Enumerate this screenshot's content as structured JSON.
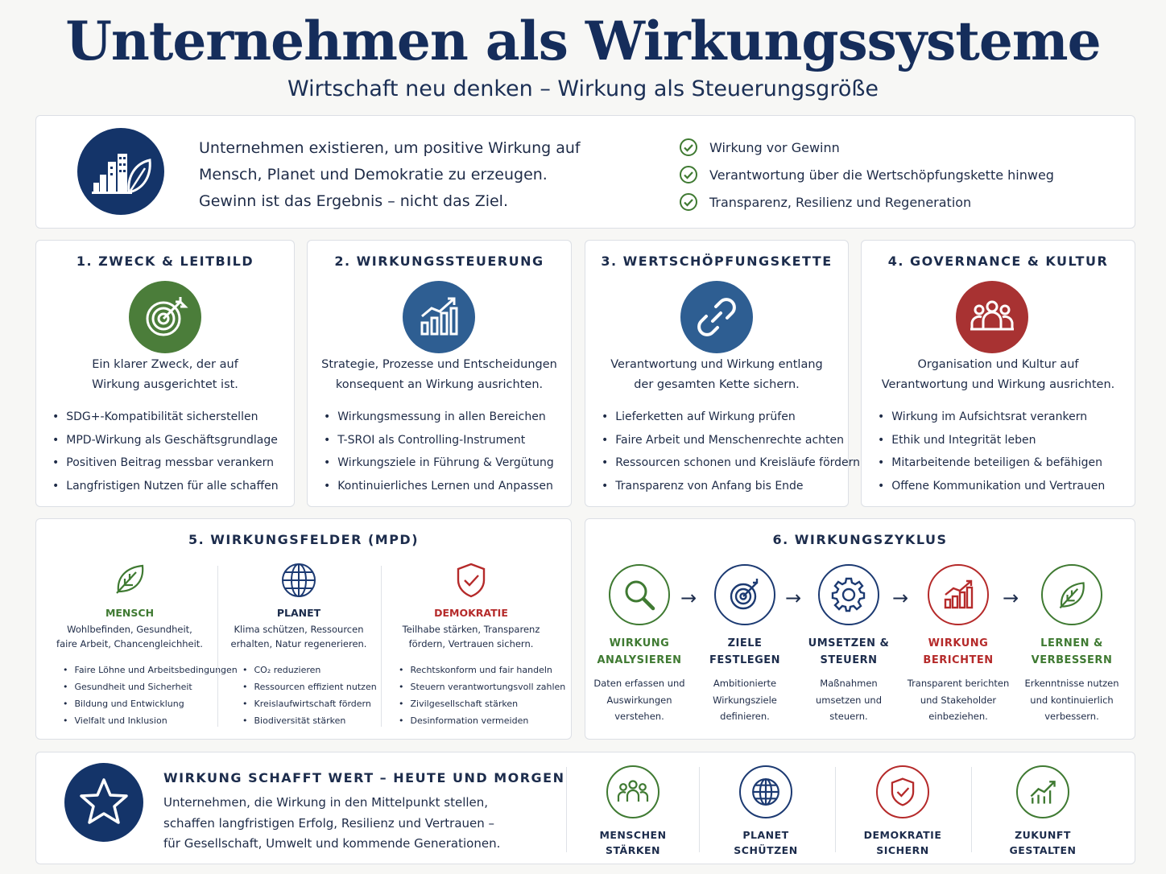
{
  "header": {
    "title": "Unternehmen als Wirkungssysteme",
    "subtitle": "Wirtschaft neu denken – Wirkung als Steuerungsgröße"
  },
  "intro": {
    "icon": "buildings-leaf-icon",
    "lines": [
      "Unternehmen existieren, um positive Wirkung auf",
      "Mensch, Planet und Demokratie zu erzeugen.",
      "Gewinn ist das Ergebnis – nicht das Ziel."
    ],
    "checks": [
      "Wirkung vor Gewinn",
      "Verantwortung über die Wertschöpfungskette hinweg",
      "Transparenz, Resilienz und Regeneration"
    ]
  },
  "pillars": [
    {
      "title": "1. ZWECK & LEITBILD",
      "icon": "target-icon",
      "color": "#4b7d3a",
      "desc": [
        "Ein klarer Zweck, der auf",
        "Wirkung ausgerichtet ist."
      ],
      "items": [
        "SDG+-Kompatibilität sicherstellen",
        "MPD-Wirkung als Geschäftsgrundlage",
        "Positiven Beitrag messbar verankern",
        "Langfristigen Nutzen für alle schaffen"
      ]
    },
    {
      "title": "2. WIRKUNGSSTEUERUNG",
      "icon": "bar-chart-growth-icon",
      "color": "#2e5e92",
      "desc": [
        "Strategie, Prozesse und Entscheidungen",
        "konsequent an Wirkung ausrichten."
      ],
      "items": [
        "Wirkungsmessung in allen Bereichen",
        "T-SROI als Controlling-Instrument",
        "Wirkungsziele in Führung & Vergütung",
        "Kontinuierliches Lernen und Anpassen"
      ]
    },
    {
      "title": "3. WERTSCHÖPFUNGSKETTE",
      "icon": "chain-link-icon",
      "color": "#2e5e92",
      "desc": [
        "Verantwortung und Wirkung entlang",
        "der gesamten Kette sichern."
      ],
      "items": [
        "Lieferketten auf Wirkung prüfen",
        "Faire Arbeit und Menschenrechte achten",
        "Ressourcen schonen und Kreisläufe fördern",
        "Transparenz von Anfang bis Ende"
      ]
    },
    {
      "title": "4. GOVERNANCE & KULTUR",
      "icon": "people-group-icon",
      "color": "#a83232",
      "desc": [
        "Organisation und Kultur auf",
        "Verantwortung und Wirkung ausrichten."
      ],
      "items": [
        "Wirkung im Aufsichtsrat verankern",
        "Ethik und Integrität leben",
        "Mitarbeitende beteiligen & befähigen",
        "Offene Kommunikation und Vertrauen"
      ]
    }
  ],
  "fields": {
    "title": "5. WIRKUNGSFELDER (MPD)",
    "columns": [
      {
        "label": "MENSCH",
        "icon": "leaf-icon",
        "color": "#3f7a32",
        "desc": [
          "Wohlbefinden, Gesundheit,",
          "faire Arbeit, Chancengleichheit."
        ],
        "items": [
          "Faire Löhne und Arbeitsbedingungen",
          "Gesundheit und Sicherheit",
          "Bildung und Entwicklung",
          "Vielfalt und Inklusion"
        ]
      },
      {
        "label": "PLANET",
        "icon": "globe-icon",
        "color": "#1c2c4c",
        "desc": [
          "Klima schützen, Ressourcen",
          "erhalten, Natur regenerieren."
        ],
        "items": [
          "CO₂ reduzieren",
          "Ressourcen effizient nutzen",
          "Kreislaufwirtschaft fördern",
          "Biodiversität stärken"
        ]
      },
      {
        "label": "DEMOKRATIE",
        "icon": "shield-check-icon",
        "color": "#b52a2a",
        "desc": [
          "Teilhabe stärken, Transparenz",
          "fördern, Vertrauen sichern."
        ],
        "items": [
          "Rechtskonform und fair handeln",
          "Steuern verantwortungsvoll zahlen",
          "Zivilgesellschaft stärken",
          "Desinformation vermeiden"
        ]
      }
    ]
  },
  "cycle": {
    "title": "6. WIRKUNGSZYKLUS",
    "steps": [
      {
        "label": [
          "WIRKUNG",
          "ANALYSIEREN"
        ],
        "icon": "magnifier-icon",
        "color": "#3f7a32",
        "desc": [
          "Daten erfassen und",
          "Auswirkungen",
          "verstehen."
        ]
      },
      {
        "label": [
          "ZIELE",
          "FESTLEGEN"
        ],
        "icon": "target-icon",
        "color": "#1c3a72",
        "desc": [
          "Ambitionierte",
          "Wirkungsziele",
          "definieren."
        ]
      },
      {
        "label": [
          "UMSETZEN &",
          "STEUERN"
        ],
        "icon": "gear-icon",
        "color": "#1c3a72",
        "desc": [
          "Maßnahmen",
          "umsetzen und",
          "steuern."
        ]
      },
      {
        "label": [
          "WIRKUNG",
          "BERICHTEN"
        ],
        "icon": "bar-chart-growth-icon",
        "color": "#b52a2a",
        "desc": [
          "Transparent berichten",
          "und Stakeholder",
          "einbeziehen."
        ]
      },
      {
        "label": [
          "LERNEN &",
          "VERBESSERN"
        ],
        "icon": "leaf-icon",
        "color": "#3f7a32",
        "desc": [
          "Erkenntnisse nutzen",
          "und kontinuierlich",
          "verbessern."
        ]
      }
    ]
  },
  "footer": {
    "icon": "star-icon",
    "heading": "WIRKUNG SCHAFFT WERT – HEUTE UND MORGEN",
    "lines": [
      "Unternehmen, die Wirkung in den Mittelpunkt stellen,",
      "schaffen langfristigen Erfolg, Resilienz und Vertrauen –",
      "für Gesellschaft, Umwelt und kommende Generationen."
    ],
    "items": [
      {
        "label": [
          "MENSCHEN",
          "STÄRKEN"
        ],
        "icon": "people-group-icon",
        "color": "#3f7a32"
      },
      {
        "label": [
          "PLANET",
          "SCHÜTZEN"
        ],
        "icon": "globe-icon",
        "color": "#1c3a72"
      },
      {
        "label": [
          "DEMOKRATIE",
          "SICHERN"
        ],
        "icon": "shield-check-icon",
        "color": "#b52a2a"
      },
      {
        "label": [
          "ZUKUNFT",
          "GESTALTEN"
        ],
        "icon": "growth-chart-icon",
        "color": "#3f7a32"
      }
    ]
  }
}
